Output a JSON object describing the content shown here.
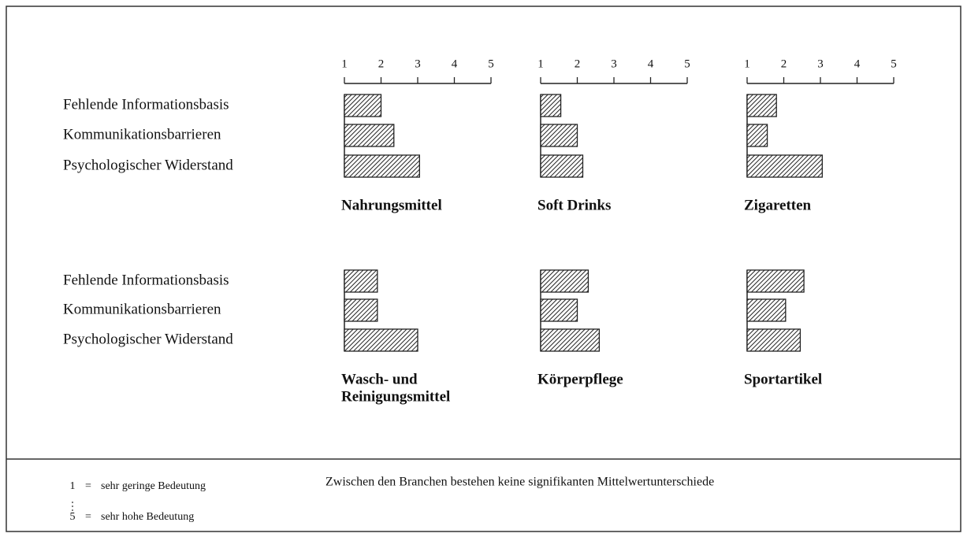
{
  "chart_data": [
    {
      "type": "hbar",
      "title": [
        "Nahrungsmittel"
      ],
      "categories": [
        "Fehlende Informationsbasis",
        "Kommunikationsbarrieren",
        "Psychologischer Widerstand"
      ],
      "values": [
        2.0,
        2.35,
        3.05
      ],
      "xlim": [
        1,
        5
      ],
      "xticks": [
        1,
        2,
        3,
        4,
        5
      ],
      "color": "#222222"
    },
    {
      "type": "hbar",
      "title": [
        "Soft Drinks"
      ],
      "values": [
        1.55,
        2.0,
        2.15
      ],
      "xlim": [
        1,
        5
      ],
      "xticks": [
        1,
        2,
        3,
        4,
        5
      ],
      "color": "#222222"
    },
    {
      "type": "hbar",
      "title": [
        "Zigaretten"
      ],
      "values": [
        1.8,
        1.55,
        3.05
      ],
      "xlim": [
        1,
        5
      ],
      "xticks": [
        1,
        2,
        3,
        4,
        5
      ],
      "color": "#222222"
    },
    {
      "type": "hbar",
      "title": [
        "Wasch- und",
        "Reinigungsmittel"
      ],
      "categories": [
        "Fehlende Informationsbasis",
        "Kommunikationsbarrieren",
        "Psychologischer Widerstand"
      ],
      "values": [
        1.9,
        1.9,
        3.0
      ],
      "xlim": [
        1,
        5
      ],
      "color": "#222222"
    },
    {
      "type": "hbar",
      "title": [
        "Körperpflege"
      ],
      "values": [
        2.3,
        2.0,
        2.6
      ],
      "xlim": [
        1,
        5
      ],
      "color": "#222222"
    },
    {
      "type": "hbar",
      "title": [
        "Sportartikel"
      ],
      "values": [
        2.55,
        2.05,
        2.45
      ],
      "xlim": [
        1,
        5
      ],
      "color": "#222222"
    }
  ],
  "legend": [
    {
      "value": 1,
      "separator": "=",
      "label": "sehr geringe Bedeutung"
    },
    {
      "value": 5,
      "separator": "=",
      "label": "sehr hohe Bedeutung"
    }
  ],
  "remark": "Zwischen den Branchen bestehen keine signifikanten Mittelwertunterschiede"
}
